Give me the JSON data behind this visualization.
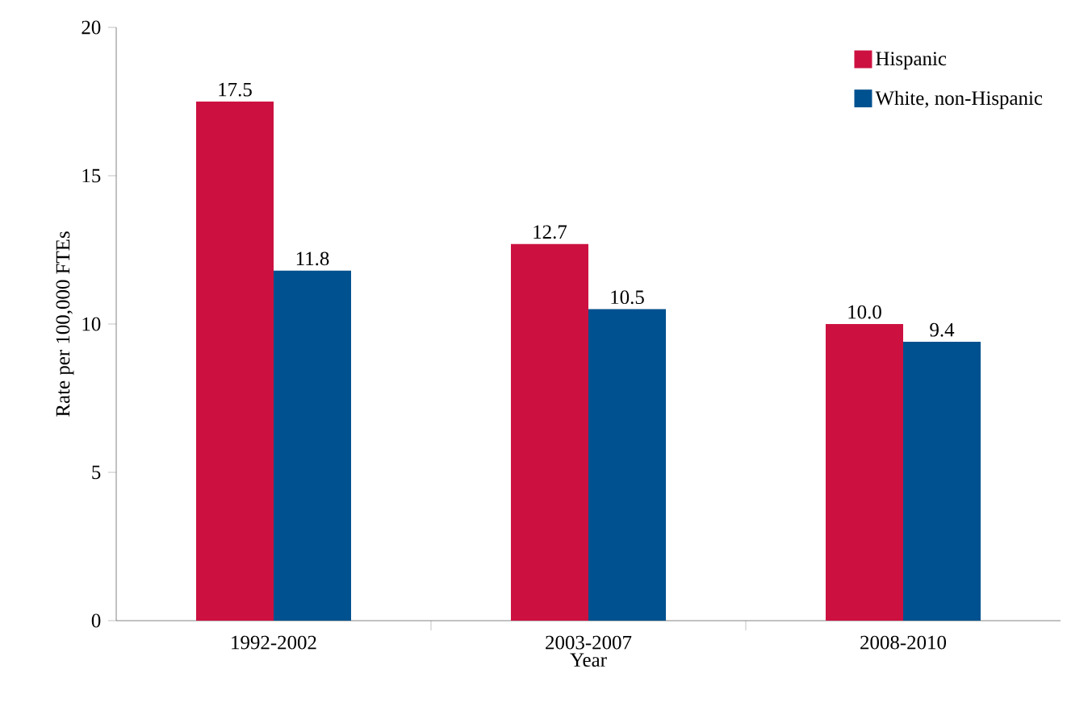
{
  "chart_data": {
    "type": "bar",
    "xlabel": "Year",
    "ylabel": "Rate per 100,000 FTEs",
    "categories": [
      "1992-2002",
      "2003-2007",
      "2008-2010"
    ],
    "series": [
      {
        "name": "Hispanic",
        "color": "#cc1140",
        "values": [
          17.5,
          12.7,
          10.0
        ],
        "value_labels": [
          "17.5",
          "12.7",
          "10.0"
        ]
      },
      {
        "name": "White, non-Hispanic",
        "color": "#00518f",
        "values": [
          11.8,
          10.5,
          9.4
        ],
        "value_labels": [
          "11.8",
          "10.5",
          "9.4"
        ]
      }
    ],
    "ylim": [
      0,
      20
    ],
    "yticks": [
      0,
      5,
      10,
      15,
      20
    ],
    "grid": false,
    "legend": "top right"
  }
}
